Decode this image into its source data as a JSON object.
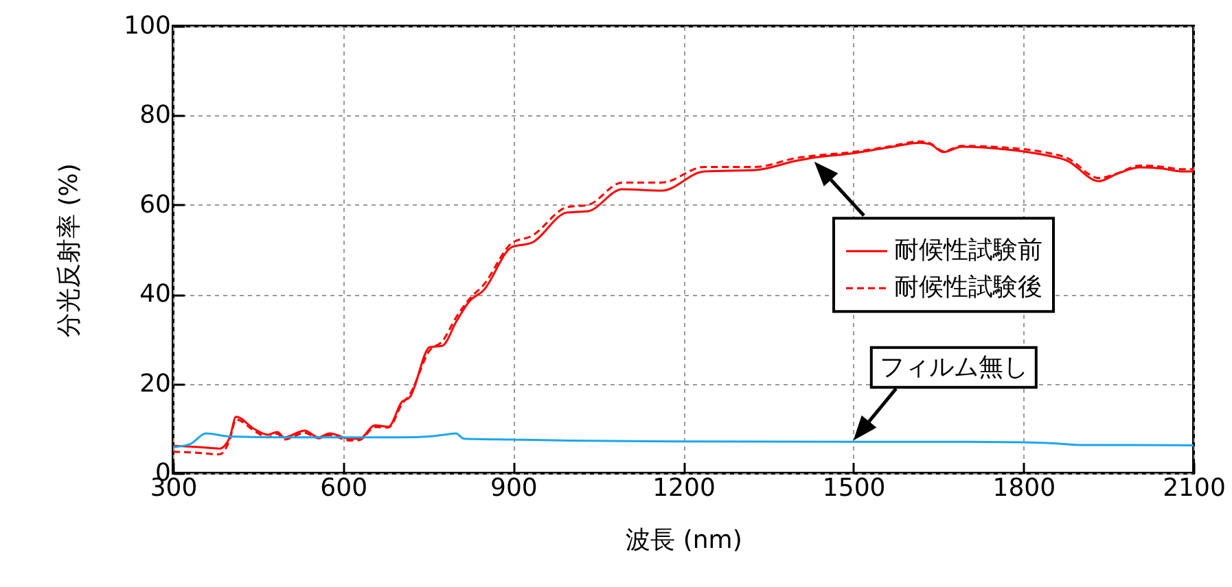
{
  "chart_data": {
    "type": "line",
    "xlabel": "波長 (nm)",
    "ylabel": "分光反射率 (%)",
    "xlim": [
      300,
      2100
    ],
    "ylim": [
      0,
      100
    ],
    "xticks": [
      300,
      600,
      900,
      1200,
      1500,
      1800,
      2100
    ],
    "yticks": [
      0,
      20,
      40,
      60,
      80,
      100
    ],
    "grid": true,
    "legend": "right",
    "annotations": [
      "フィルム無し"
    ],
    "series": [
      {
        "name": "耐候性試験前",
        "color": "#ff0000",
        "line_style": "solid",
        "x": [
          300,
          350,
          382,
          400,
          411,
          443,
          467,
          484,
          496,
          532,
          557,
          576,
          612,
          629,
          656,
          680,
          704,
          717,
          753,
          775,
          800,
          823,
          847,
          898,
          932,
          995,
          1032,
          1092,
          1162,
          1237,
          1327,
          1400,
          1431,
          1497,
          1560,
          1618,
          1635,
          1659,
          1691,
          1770,
          1836,
          1877,
          1933,
          1964,
          2005,
          2047,
          2078,
          2100
        ],
        "values": [
          6.1,
          5.8,
          5.5,
          8,
          12.6,
          9.9,
          8.6,
          9.2,
          8,
          9.5,
          8,
          8.9,
          7.7,
          7.7,
          10.7,
          10.4,
          16,
          16.9,
          28.2,
          28.5,
          34,
          38.5,
          40.8,
          50.6,
          51.5,
          58.3,
          58.6,
          63.5,
          63.2,
          67.5,
          67.8,
          69.9,
          70.6,
          71.5,
          72.8,
          73.9,
          73.6,
          71.8,
          73,
          72.4,
          71.2,
          69.9,
          65.3,
          66.9,
          68.4,
          68.1,
          67.5,
          67.5
        ]
      },
      {
        "name": "耐候性試験後",
        "color": "#ff0000",
        "line_style": "dashed",
        "x": [
          300,
          350,
          382,
          400,
          411,
          443,
          467,
          484,
          496,
          532,
          557,
          576,
          612,
          629,
          656,
          680,
          704,
          717,
          753,
          775,
          800,
          823,
          847,
          898,
          932,
          995,
          1032,
          1092,
          1162,
          1237,
          1327,
          1400,
          1431,
          1497,
          1560,
          1618,
          1635,
          1659,
          1691,
          1770,
          1836,
          1877,
          1933,
          1964,
          2005,
          2047,
          2078,
          2100
        ],
        "values": [
          4.8,
          4.5,
          4.2,
          7.5,
          12,
          9.5,
          8,
          8.8,
          7.5,
          9,
          7.8,
          8.5,
          7.3,
          7.4,
          10.3,
          10.2,
          15.5,
          17.5,
          27.5,
          29.5,
          35,
          39,
          42,
          51.5,
          53,
          59.5,
          60,
          65,
          65,
          68.5,
          68.5,
          70.5,
          71,
          71.8,
          73,
          74.2,
          73.8,
          72,
          73.2,
          72.8,
          71.8,
          70.5,
          66,
          67,
          68.8,
          68.5,
          68,
          68
        ]
      },
      {
        "color": "#1aa7ec",
        "line_style": "solid",
        "x": [
          300,
          330,
          358,
          400,
          500,
          600,
          700,
          760,
          785,
          799,
          813,
          900,
          1000,
          1200,
          1500,
          1700,
          1800,
          1850,
          1900,
          2000,
          2100
        ],
        "values": [
          5.8,
          6.5,
          8.9,
          8.2,
          8,
          8,
          8,
          8.3,
          8.7,
          8.9,
          7.7,
          7.5,
          7.3,
          7.1,
          7,
          7,
          6.9,
          6.7,
          6.3,
          6.3,
          6.2
        ]
      }
    ]
  }
}
